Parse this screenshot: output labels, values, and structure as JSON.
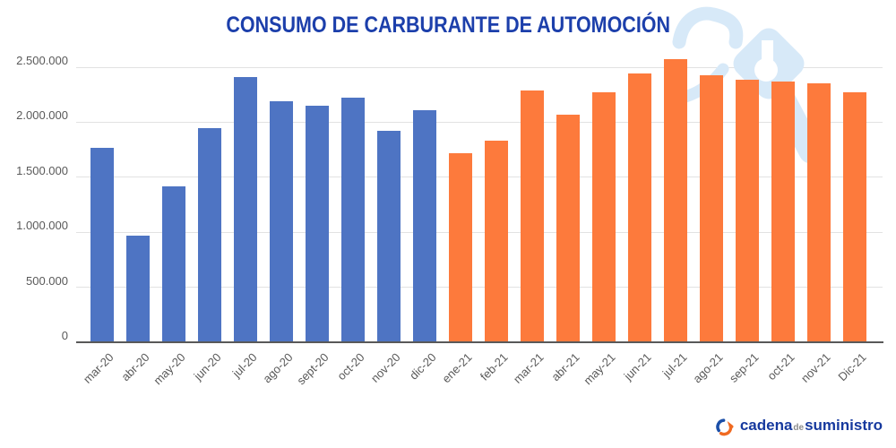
{
  "title": "CONSUMO DE CARBURANTE DE AUTOMOCIÓN",
  "chart_data": {
    "type": "bar",
    "title": "CONSUMO DE CARBURANTE DE AUTOMOCIÓN",
    "categories": [
      "mar-20",
      "abr-20",
      "may-20",
      "jun-20",
      "jul-20",
      "ago-20",
      "sept-20",
      "oct-20",
      "nov-20",
      "dic-20",
      "ene-21",
      "feb-21",
      "mar-21",
      "abr-21",
      "may-21",
      "jun-21",
      "jul-21",
      "ago-21",
      "sep-21",
      "oct-21",
      "nov-21",
      "Dic-21"
    ],
    "values": [
      1770000,
      970000,
      1420000,
      1950000,
      2410000,
      2190000,
      2150000,
      2220000,
      1920000,
      2110000,
      1720000,
      1830000,
      2290000,
      2070000,
      2270000,
      2440000,
      2570000,
      2430000,
      2390000,
      2370000,
      2350000,
      2270000
    ],
    "series": [
      {
        "name": "2020",
        "color": "#4e74c3",
        "count": 10
      },
      {
        "name": "2021",
        "color": "#fd7a3c",
        "count": 12
      }
    ],
    "xlabel": "",
    "ylabel": "",
    "ylim": [
      0,
      2500000
    ],
    "ytick_step": 500000,
    "ytick_labels": [
      "0",
      "500.000",
      "1.000.000",
      "1.500.000",
      "2.000.000",
      "2.500.000"
    ],
    "grid": true,
    "legend_position": "none"
  },
  "axis": {
    "baseline_color": "#595959",
    "grid_color": "#e2e2e2",
    "tick_label_color": "#595959",
    "title_color": "#1c3fab"
  },
  "watermark": {
    "icon": "fuel-nozzle-watermark-icon",
    "color": "#d7e9f8"
  },
  "footer_logo": {
    "brand_part1": "cadena",
    "brand_part2": "de",
    "brand_part3": "suministro",
    "primary_color": "#16399e",
    "secondary_color": "#8c8c8c",
    "icon_blue": "#1b4fa8",
    "icon_orange": "#f06a21"
  }
}
